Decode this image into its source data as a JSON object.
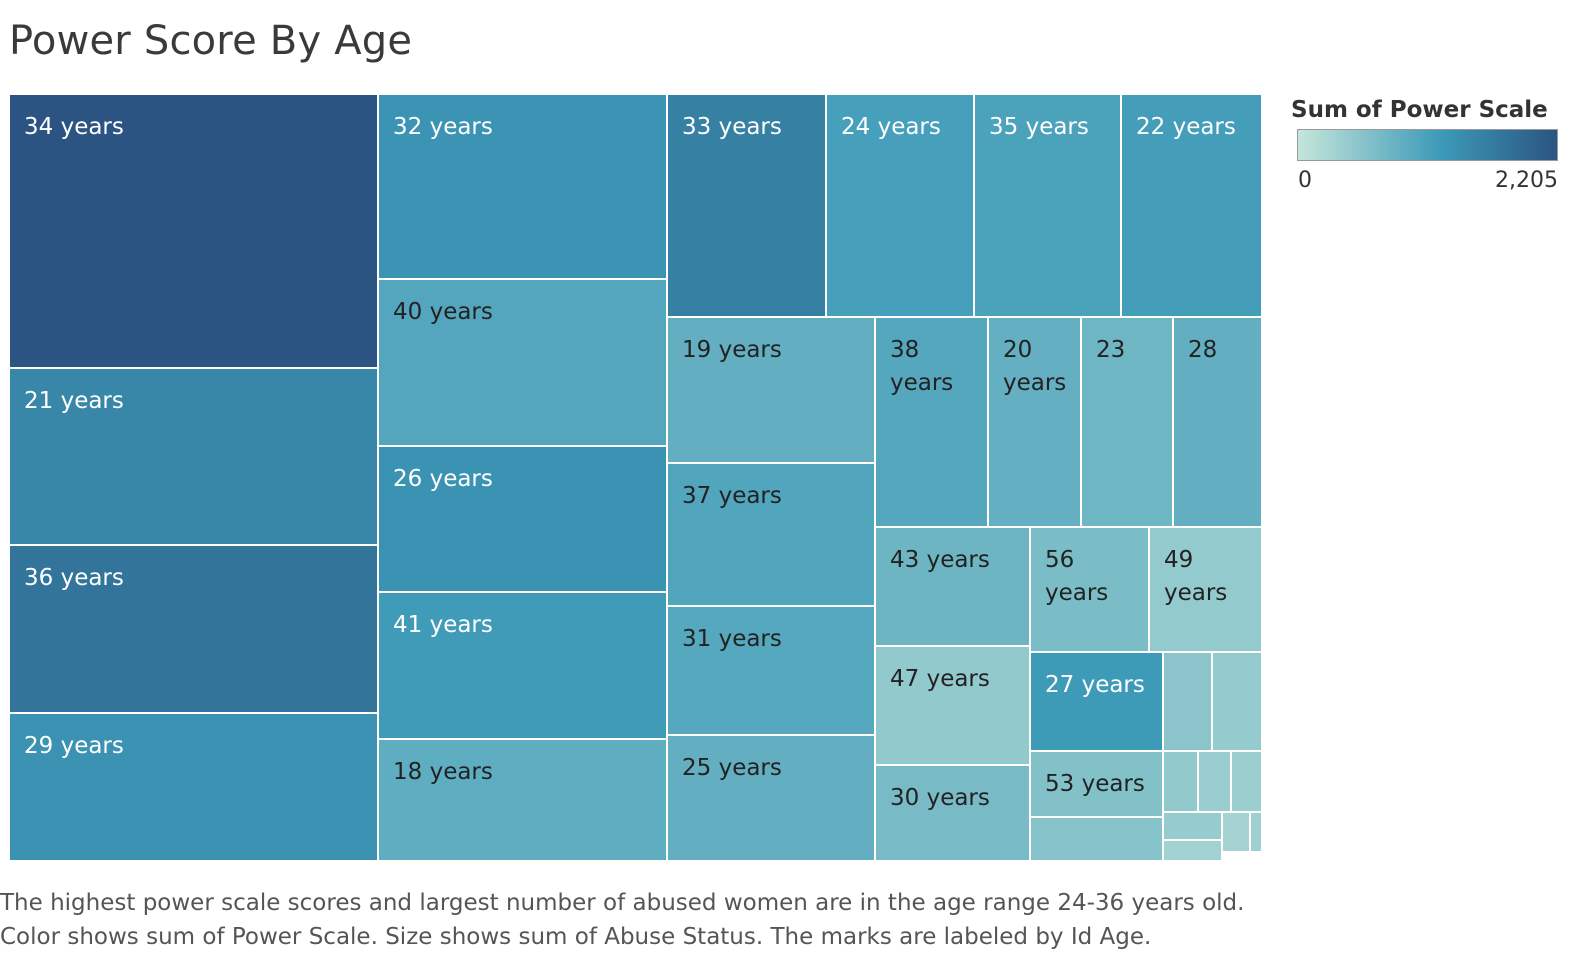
{
  "title": "Power Score By Age",
  "caption": "The highest power scale scores and largest number of abused women are in the age range 24-36 years old.  Color shows sum of Power Scale.  Size shows sum of Abuse Status.  The marks are labeled by Id Age.",
  "legend": {
    "title": "Sum of Power Scale",
    "min_label": "0",
    "max_label": "2,205",
    "min": 0,
    "max": 2205,
    "color_low": "#c6e6da",
    "color_mid": "#3d9ab8",
    "color_high": "#2b5482"
  },
  "chart_data": {
    "type": "treemap",
    "title": "Power Score By Age",
    "size_measure": "Sum of Abuse Status",
    "color_measure": "Sum of Power Scale",
    "color_range": [
      0,
      2205
    ],
    "nodes": [
      {
        "label": "34 years",
        "power": 2205
      },
      {
        "label": "21 years",
        "power": 1500
      },
      {
        "label": "36 years",
        "power": 1750
      },
      {
        "label": "29 years",
        "power": 1320
      },
      {
        "label": "32 years",
        "power": 1300
      },
      {
        "label": "40 years",
        "power": 1020
      },
      {
        "label": "26 years",
        "power": 1310
      },
      {
        "label": "41 years",
        "power": 1190
      },
      {
        "label": "18 years",
        "power": 910
      },
      {
        "label": "33 years",
        "power": 1580
      },
      {
        "label": "24 years",
        "power": 1120
      },
      {
        "label": "35 years",
        "power": 1090
      },
      {
        "label": "22 years",
        "power": 1150
      },
      {
        "label": "19 years",
        "power": 880
      },
      {
        "label": "38 years",
        "power": 1000
      },
      {
        "label": "20 years",
        "power": 870
      },
      {
        "label": "23",
        "power": 770
      },
      {
        "label": "28",
        "power": 880
      },
      {
        "label": "37 years",
        "power": 1040
      },
      {
        "label": "43 years",
        "power": 780
      },
      {
        "label": "56 years",
        "power": 660
      },
      {
        "label": "49 years",
        "power": 450
      },
      {
        "label": "31 years",
        "power": 990
      },
      {
        "label": "47 years",
        "power": 470
      },
      {
        "label": "27 years",
        "power": 1200
      },
      {
        "label": "25 years",
        "power": 880
      },
      {
        "label": "30 years",
        "power": 690
      },
      {
        "label": "53 years",
        "power": 590
      },
      {
        "label": "",
        "power": 520
      },
      {
        "label": "",
        "power": 430
      },
      {
        "label": "",
        "power": 560
      },
      {
        "label": "",
        "power": 460
      },
      {
        "label": "",
        "power": 400
      },
      {
        "label": "",
        "power": 380
      },
      {
        "label": "",
        "power": 420
      },
      {
        "label": "",
        "power": 300
      },
      {
        "label": "",
        "power": 350
      },
      {
        "label": "",
        "power": 320
      }
    ]
  }
}
